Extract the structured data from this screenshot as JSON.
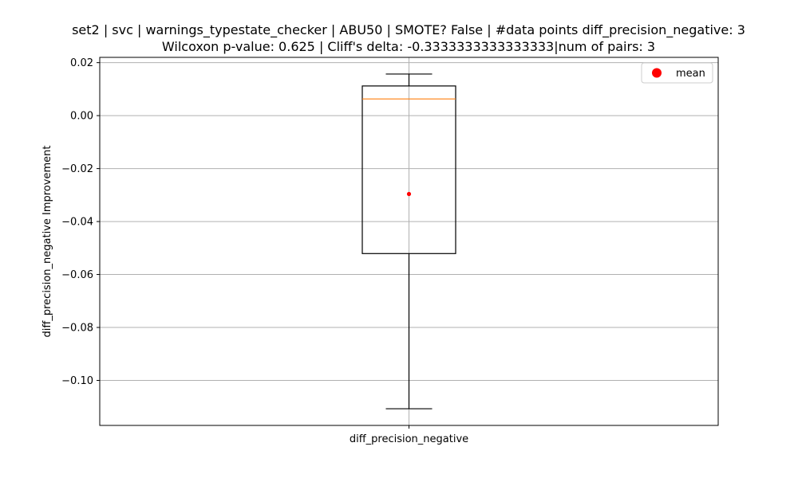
{
  "chart_data": {
    "type": "box",
    "title_line1": "set2 | svc | warnings_typestate_checker | ABU50 | SMOTE? False | #data points diff_precision_negative: 3",
    "title_line2": "Wilcoxon p-value: 0.625 | Cliff's delta: -0.3333333333333333|num of pairs: 3",
    "xlabel": "",
    "ylabel": "diff_precision_negative Improvement",
    "categories": [
      "diff_precision_negative"
    ],
    "boxes": [
      {
        "name": "diff_precision_negative",
        "whisker_low": -0.1107,
        "q1": -0.0521,
        "median": 0.0063,
        "q3": 0.0112,
        "whisker_high": 0.0157,
        "mean": -0.0296
      }
    ],
    "ylim": [
      -0.117,
      0.022
    ],
    "yticks": [
      0.02,
      0.0,
      -0.02,
      -0.04,
      -0.06,
      -0.08,
      -0.1
    ],
    "ytick_labels": [
      "0.02",
      "0.00",
      "−0.02",
      "−0.04",
      "−0.06",
      "−0.08",
      "−0.10"
    ],
    "grid": true,
    "legend": {
      "placement": "top-right",
      "entries": [
        {
          "label": "mean",
          "marker": "circle",
          "color": "#ff0000"
        }
      ]
    },
    "colors": {
      "box": "#000000",
      "median": "#ff7f0e",
      "mean": "#ff0000",
      "grid": "#b0b0b0"
    }
  }
}
